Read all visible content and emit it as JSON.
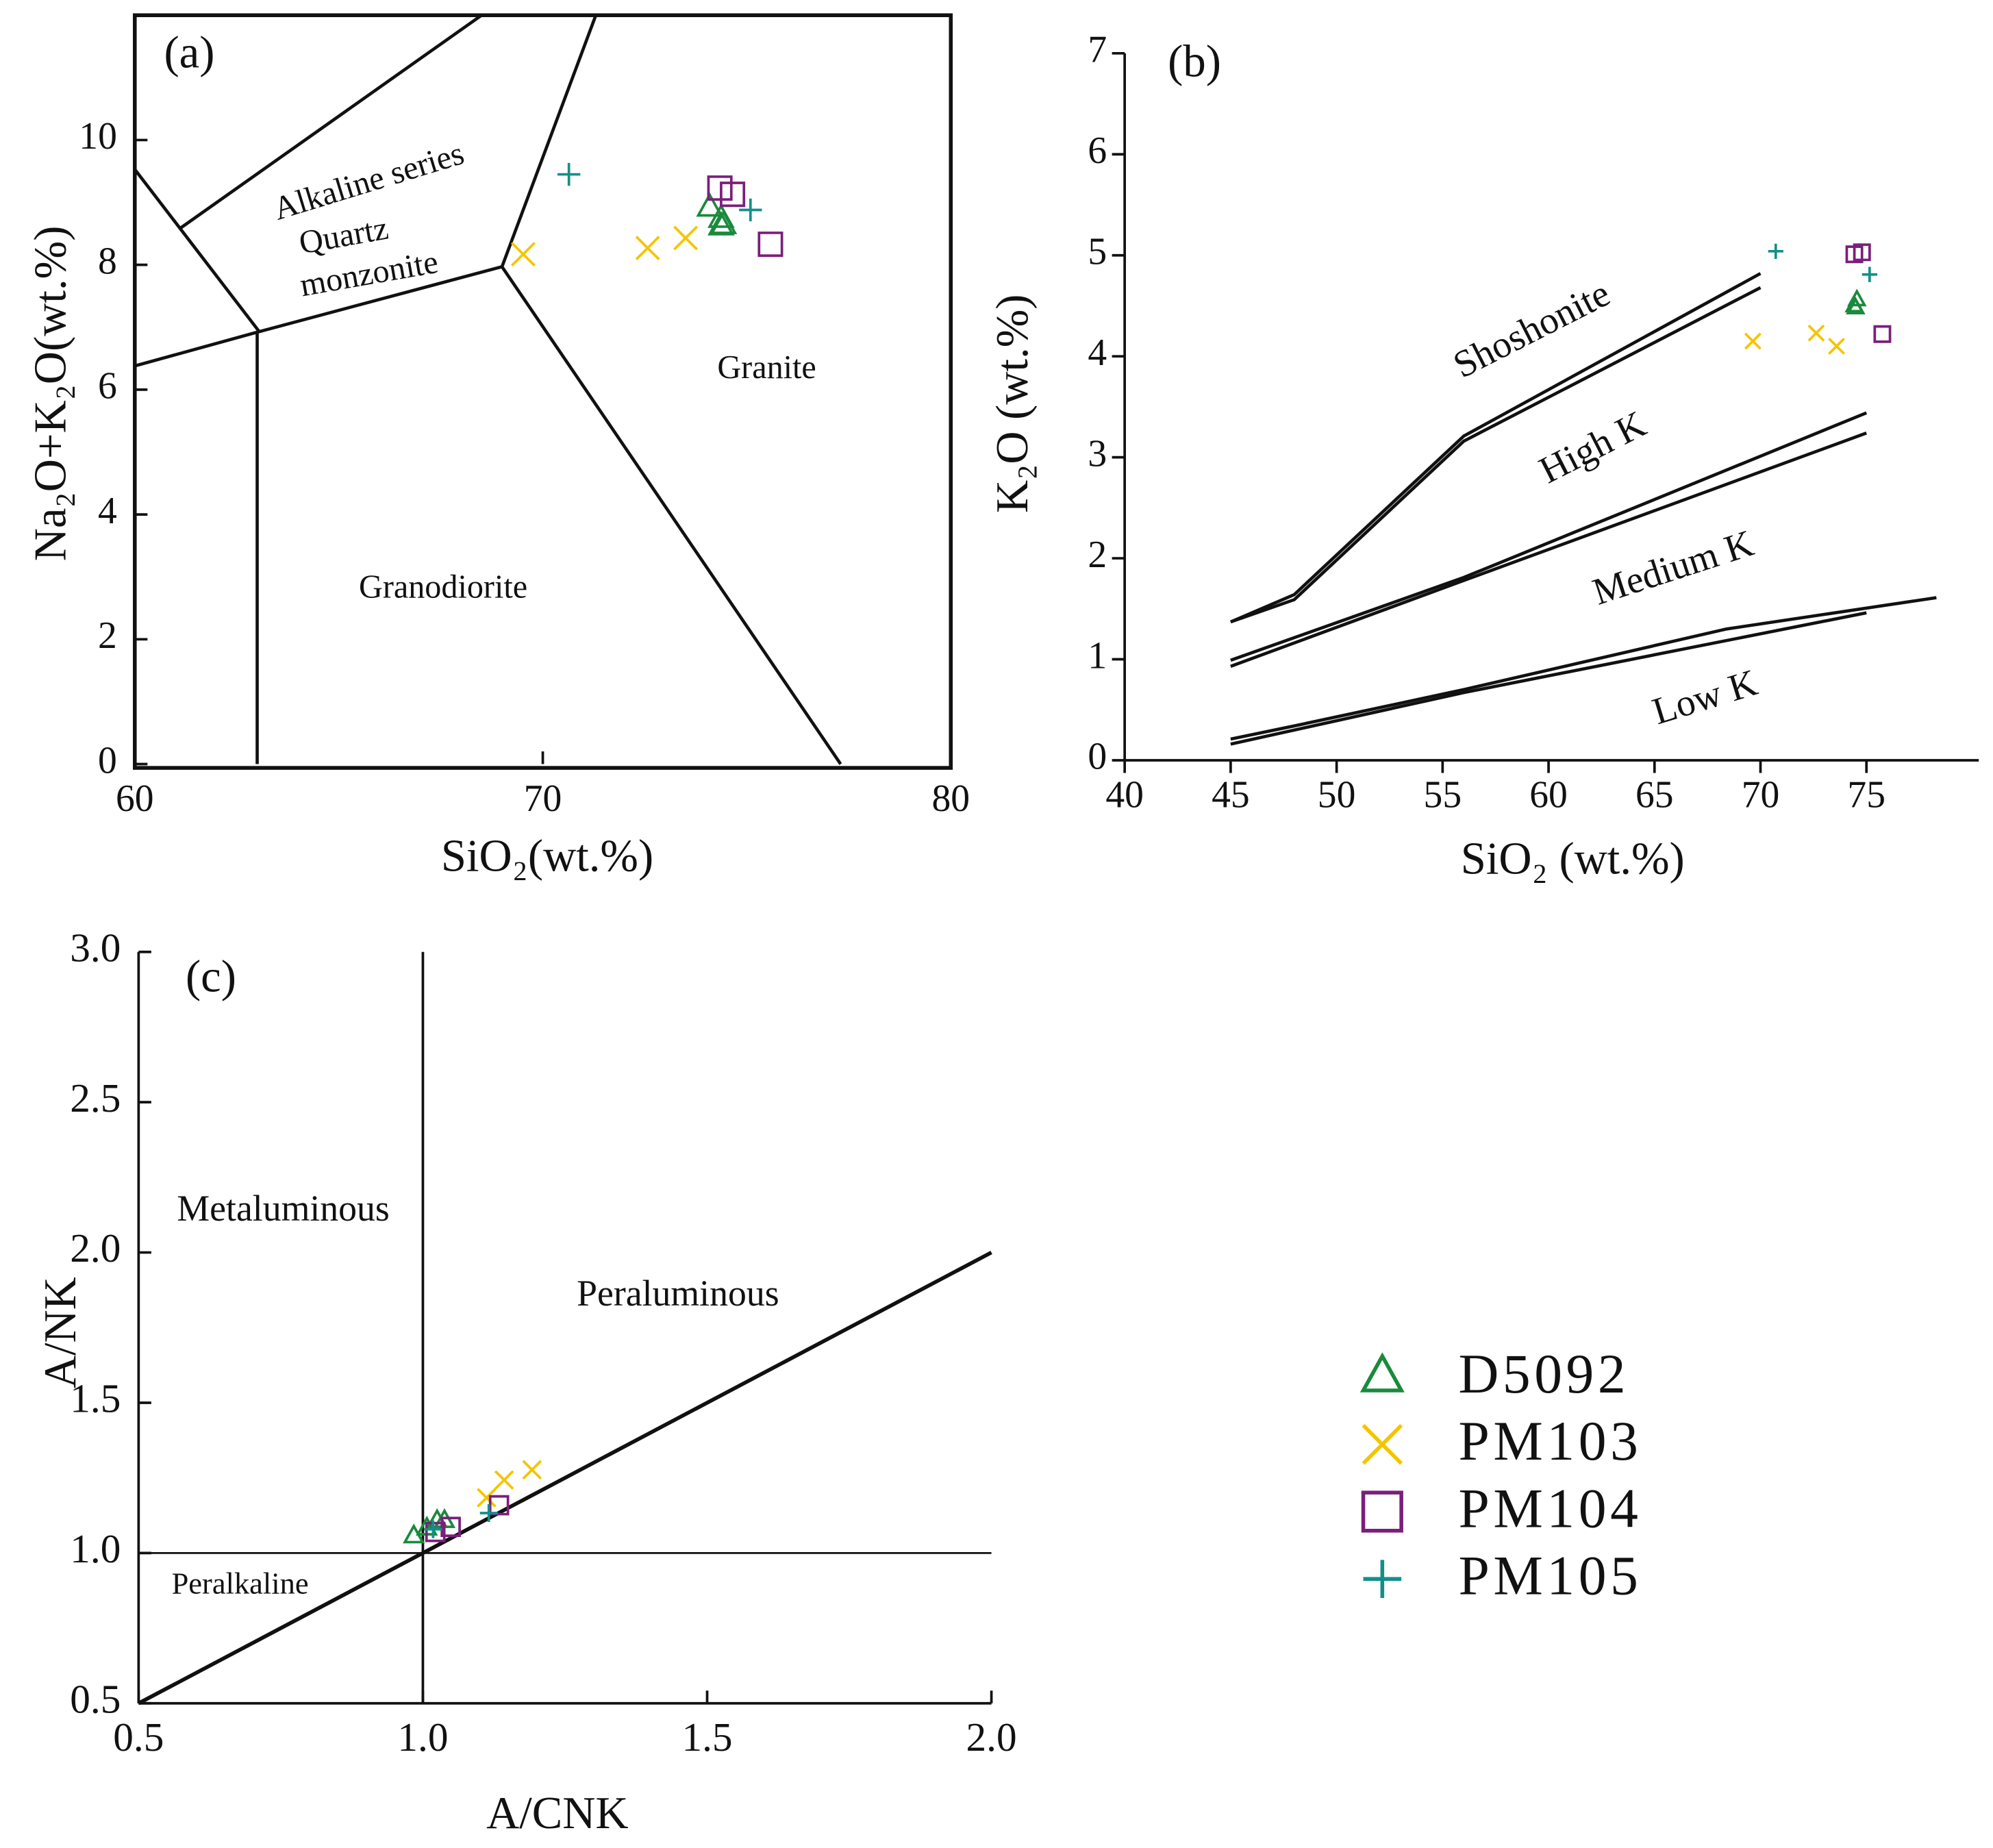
{
  "chart_data": [
    {
      "type": "scatter",
      "title": "(a)",
      "x_label": "SiO₂(wt.%)",
      "y_label": "Na₂O+K₂O(wt.%)",
      "xlim": [
        60,
        80
      ],
      "ylim": [
        0,
        12
      ],
      "xticks": [
        60,
        70,
        80
      ],
      "yticks": [
        0,
        2,
        4,
        6,
        8,
        10
      ],
      "annotations": [
        "Alkaline series",
        "Quartz",
        "monzonite",
        "Granite",
        "Granodiorite"
      ],
      "lines": [
        {
          "x": [
            60,
            63.05
          ],
          "y": [
            9.53,
            6.93
          ]
        },
        {
          "x": [
            63,
            63
          ],
          "y": [
            6.93,
            0
          ]
        },
        {
          "x": [
            60,
            63.05,
            69
          ],
          "y": [
            6.38,
            6.93,
            7.97
          ]
        },
        {
          "x": [
            69,
            77.3
          ],
          "y": [
            7.97,
            0
          ]
        },
        {
          "x": [
            69,
            71.3
          ],
          "y": [
            7.97,
            12
          ]
        },
        {
          "x": [
            61.1,
            68.5
          ],
          "y": [
            8.58,
            12
          ]
        }
      ],
      "series": [
        {
          "name": "D5092",
          "marker": "triangle",
          "color": "#1a8a3c",
          "x": [
            74.09,
            74.37,
            74.43,
            74.37
          ],
          "y": [
            8.92,
            8.74,
            8.64,
            8.62
          ]
        },
        {
          "name": "PM103",
          "marker": "x",
          "color": "#f5c400",
          "x": [
            69.52,
            72.57,
            73.5
          ],
          "y": [
            8.17,
            8.27,
            8.43
          ]
        },
        {
          "name": "PM104",
          "marker": "square",
          "color": "#7b1f7a",
          "x": [
            74.34,
            74.65,
            75.58
          ],
          "y": [
            9.23,
            9.13,
            8.33
          ]
        },
        {
          "name": "PM105",
          "marker": "plus",
          "color": "#138f8a",
          "x": [
            70.64,
            75.09
          ],
          "y": [
            9.45,
            8.88
          ]
        }
      ]
    },
    {
      "type": "scatter",
      "title": "(b)",
      "x_label": "SiO₂ (wt.%)",
      "y_label": "K₂O (wt.%)",
      "xlim": [
        40,
        80.3
      ],
      "ylim": [
        0,
        7
      ],
      "xticks": [
        40,
        45,
        50,
        55,
        60,
        65,
        70,
        75
      ],
      "yticks": [
        0,
        1,
        2,
        3,
        4,
        5,
        6,
        7
      ],
      "annotations": [
        "Shoshonite",
        "High K",
        "Medium K",
        "Low K"
      ],
      "lines": [
        {
          "x": [
            45,
            48,
            56,
            70
          ],
          "y": [
            1.37,
            1.64,
            3.21,
            4.82
          ]
        },
        {
          "x": [
            45,
            48,
            56,
            70
          ],
          "y": [
            1.37,
            1.59,
            3.16,
            4.68
          ]
        },
        {
          "x": [
            45,
            56,
            75
          ],
          "y": [
            0.99,
            1.81,
            3.44
          ]
        },
        {
          "x": [
            45,
            56,
            75
          ],
          "y": [
            0.93,
            1.78,
            3.24
          ]
        },
        {
          "x": [
            45,
            48,
            56,
            68.4,
            78.3
          ],
          "y": [
            0.21,
            0.34,
            0.7,
            1.3,
            1.61
          ]
        },
        {
          "x": [
            45,
            56,
            75
          ],
          "y": [
            0.16,
            0.67,
            1.46
          ]
        }
      ],
      "series": [
        {
          "name": "D5092",
          "marker": "triangle",
          "color": "#1a8a3c",
          "x": [
            74.43,
            74.55,
            74.49
          ],
          "y": [
            4.5,
            4.56,
            4.48
          ]
        },
        {
          "name": "PM103",
          "marker": "x",
          "color": "#f5c400",
          "x": [
            69.64,
            72.63,
            73.59
          ],
          "y": [
            4.15,
            4.23,
            4.1
          ]
        },
        {
          "name": "PM104",
          "marker": "square",
          "color": "#7b1f7a",
          "x": [
            74.43,
            74.79,
            75.75
          ],
          "y": [
            5.01,
            5.03,
            4.22
          ]
        },
        {
          "name": "PM105",
          "marker": "plus",
          "color": "#138f8a",
          "x": [
            70.72,
            75.15
          ],
          "y": [
            5.04,
            4.81
          ]
        }
      ]
    },
    {
      "type": "scatter",
      "title": "(c)",
      "x_label": "A/CNK",
      "y_label": "A/NK",
      "xlim": [
        0.5,
        2.0
      ],
      "ylim": [
        0.5,
        3.0
      ],
      "xticks": [
        0.5,
        {
          "value": 1,
          "label": "1.0"
        },
        1.5,
        {
          "value": 2,
          "label": "2.0"
        }
      ],
      "yticks": [
        0.5,
        {
          "value": 1,
          "label": "1.0"
        },
        1.5,
        {
          "value": 2,
          "label": "2.0"
        },
        2.5,
        {
          "value": 3,
          "label": "3.0"
        }
      ],
      "annotations": [
        "Metaluminous",
        "Peraluminous",
        "Peralkaline"
      ],
      "lines": [
        {
          "x": [
            1,
            1
          ],
          "y": [
            0.5,
            3
          ]
        },
        {
          "x": [
            0.5,
            2
          ],
          "y": [
            1,
            1
          ]
        },
        {
          "x": [
            0.5,
            2
          ],
          "y": [
            0.5,
            2
          ]
        }
      ],
      "series": [
        {
          "name": "D5092",
          "marker": "triangle",
          "color": "#1a8a3c",
          "x": [
            0.984,
            1.007,
            1.025,
            1.038
          ],
          "y": [
            1.057,
            1.083,
            1.108,
            1.108
          ]
        },
        {
          "name": "PM103",
          "marker": "x",
          "color": "#f5c400",
          "x": [
            1.112,
            1.143,
            1.192
          ],
          "y": [
            1.184,
            1.243,
            1.277
          ]
        },
        {
          "name": "PM104",
          "marker": "square",
          "color": "#7b1f7a",
          "x": [
            1.022,
            1.049,
            1.134
          ],
          "y": [
            1.07,
            1.087,
            1.159
          ]
        },
        {
          "name": "PM105",
          "marker": "plus",
          "color": "#138f8a",
          "x": [
            1.018,
            1.116
          ],
          "y": [
            1.079,
            1.133
          ]
        }
      ]
    }
  ]
}
